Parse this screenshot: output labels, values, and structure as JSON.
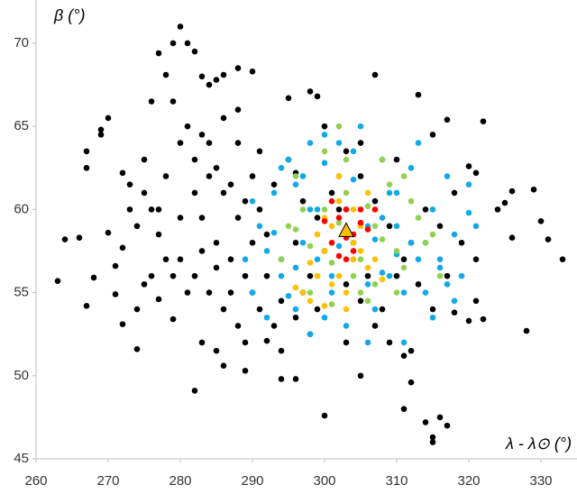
{
  "chart_data": {
    "type": "scatter",
    "ylabel": "β (°)",
    "xlabel": "λ - λ⊙ (°)",
    "xlim": [
      260,
      335
    ],
    "ylim": [
      45,
      72.6
    ],
    "xticks": [
      260,
      270,
      280,
      290,
      300,
      310,
      320,
      330
    ],
    "yticks": [
      45,
      50,
      55,
      60,
      65,
      70
    ],
    "grid": false,
    "series": [
      {
        "color": "#000000",
        "x": [
          263,
          264,
          266,
          267,
          267,
          267,
          269,
          270,
          269,
          271,
          272,
          274,
          272,
          273,
          275,
          276,
          277,
          278,
          279,
          280,
          281,
          282,
          283,
          284,
          285,
          286,
          288,
          290,
          295,
          296,
          298,
          299,
          307,
          313,
          315,
          317,
          322,
          320,
          321,
          325,
          326,
          329,
          330,
          331,
          333,
          328,
          326,
          324,
          322,
          320,
          321,
          318,
          317,
          315,
          314,
          316,
          315,
          312,
          311,
          311,
          312,
          305,
          303,
          300,
          294,
          294,
          296,
          292,
          289,
          286,
          285,
          282,
          283,
          279,
          277,
          275,
          271,
          268,
          277,
          280,
          282,
          284,
          286,
          288,
          290,
          292,
          294,
          296,
          298,
          290,
          288,
          286,
          284,
          282,
          280,
          278,
          276,
          274,
          272,
          270,
          283,
          285,
          287,
          289,
          291,
          293,
          295,
          297,
          299,
          301,
          303,
          305,
          307,
          309,
          311,
          313,
          315,
          317,
          319,
          321,
          308,
          306,
          304,
          302,
          300,
          298,
          296,
          294,
          292,
          290,
          288,
          286,
          284,
          282,
          280,
          278,
          276,
          274,
          288,
          291,
          300,
          305,
          310,
          318,
          316,
          314,
          312,
          310,
          309,
          307,
          305,
          303,
          299,
          297,
          293,
          291,
          289,
          287,
          285,
          283,
          281,
          279,
          277,
          275,
          273,
          279,
          281,
          283,
          285,
          287,
          289
        ],
        "y": [
          55.7,
          58.2,
          58.3,
          54.2,
          62.5,
          63.5,
          64.5,
          65.5,
          64.8,
          56.6,
          53.1,
          51.6,
          62.2,
          61.5,
          63,
          66.5,
          69.4,
          68.1,
          70,
          71,
          70,
          69.5,
          68,
          67.5,
          67.8,
          68.1,
          68.5,
          68.3,
          66.7,
          62.2,
          67.1,
          66.8,
          68.1,
          66.9,
          64.5,
          65.4,
          65.3,
          62.6,
          62.2,
          60.4,
          61.1,
          61.2,
          59.3,
          58.2,
          57,
          52.7,
          58.3,
          60,
          53.4,
          53.3,
          54.5,
          53.8,
          47,
          46.3,
          47.2,
          47.5,
          46,
          49.6,
          48,
          51.2,
          51.5,
          50,
          52,
          47.6,
          51.5,
          49.8,
          49.8,
          52.1,
          50.3,
          50.6,
          51.5,
          49.1,
          52,
          53.4,
          54.6,
          55.5,
          54.9,
          55.9,
          58.5,
          57,
          56,
          55,
          54,
          53,
          55,
          56,
          54.5,
          53.5,
          52.5,
          58,
          59.5,
          61,
          62,
          63,
          64,
          62,
          60,
          59,
          57.7,
          58.6,
          59.5,
          58,
          57,
          56,
          60,
          61.5,
          63,
          60.5,
          59.5,
          61,
          63.5,
          62,
          60.5,
          59,
          57,
          55.5,
          54,
          56,
          58,
          57,
          54,
          56,
          58,
          60,
          57.5,
          56,
          58,
          57,
          58.5,
          62,
          64,
          65.5,
          64,
          61,
          59.5,
          57,
          56,
          54,
          66,
          63.5,
          65,
          64,
          63,
          61,
          59,
          60,
          58,
          56,
          52,
          53,
          54.5,
          55.5,
          54,
          55,
          53,
          54,
          52,
          55,
          56.5,
          57.5,
          55,
          56,
          60,
          61,
          60,
          66.5,
          65,
          64.5,
          62.5,
          61.5,
          60.5
        ]
      },
      {
        "color": "#12a9e6",
        "x": [
          289,
          290,
          291,
          292,
          293,
          294,
          295,
          296,
          297,
          298,
          299,
          300,
          301,
          302,
          303,
          304,
          305,
          306,
          307,
          308,
          309,
          310,
          311,
          312,
          313,
          314,
          315,
          316,
          317,
          318,
          319,
          320,
          321,
          290,
          292,
          294,
          296,
          298,
          300,
          302,
          304,
          306,
          308,
          310,
          312,
          314,
          316,
          318,
          320,
          293,
          297,
          301,
          305,
          309,
          313,
          317,
          295,
          299,
          303,
          307,
          311,
          315,
          300,
          304,
          308,
          302,
          306,
          298,
          310,
          296
        ],
        "y": [
          57,
          55,
          59,
          53.5,
          61,
          56,
          63,
          54,
          58,
          52.5,
          60,
          64.5,
          55,
          62,
          53,
          57,
          65,
          59,
          54,
          63,
          56,
          61,
          52,
          58,
          64,
          55,
          60,
          57,
          62,
          58.5,
          56,
          61.5,
          59,
          60.5,
          57.5,
          62.5,
          56.5,
          64,
          53.5,
          57.8,
          61.8,
          55.5,
          59.5,
          57.3,
          62.5,
          58,
          56.5,
          54.5,
          59.8,
          58.6,
          62,
          56,
          59,
          61,
          57,
          55.5,
          54.8,
          57,
          60,
          58.2,
          55,
          53.5,
          62.8,
          63.5,
          56.2,
          64,
          52,
          60,
          59,
          61.5
        ]
      },
      {
        "color": "#92d050",
        "x": [
          294,
          296,
          298,
          300,
          302,
          304,
          306,
          308,
          310,
          312,
          314,
          316,
          295,
          299,
          303,
          307,
          311,
          315,
          297,
          301,
          305,
          309,
          313,
          300,
          304,
          308,
          302,
          306,
          310,
          298,
          303,
          307,
          311,
          296,
          305,
          301
        ],
        "y": [
          57,
          62,
          55,
          60,
          65,
          58,
          54.5,
          63,
          57.5,
          60.5,
          58,
          56,
          59,
          56,
          61,
          55.5,
          62,
          58.5,
          60,
          54.3,
          57,
          61.5,
          59.5,
          63.5,
          56,
          58.2,
          59.2,
          60.2,
          55,
          57.8,
          63,
          59,
          56.5,
          58.8,
          55,
          56.8
        ]
      },
      {
        "color": "#ffc000",
        "x": [
          297,
          298,
          299,
          300,
          301,
          302,
          303,
          304,
          305,
          306,
          307,
          308,
          298,
          300,
          302,
          304,
          306,
          296,
          301,
          303,
          305,
          299,
          307,
          302,
          304,
          300
        ],
        "y": [
          55,
          54.5,
          56,
          57.5,
          55.5,
          60.5,
          54,
          57,
          59,
          56.5,
          60,
          55.8,
          56.8,
          54.2,
          56,
          58,
          61,
          55.3,
          59,
          55,
          57.5,
          58.5,
          57,
          62,
          60,
          59.5
        ]
      },
      {
        "color": "#ff0000",
        "x": [
          300,
          301,
          302,
          303,
          304,
          305,
          302,
          303,
          304,
          306,
          301,
          305,
          303,
          307
        ],
        "y": [
          59.3,
          58,
          59.5,
          57,
          58.5,
          60,
          57.2,
          60,
          57.5,
          58.8,
          60.5,
          59.2,
          58.3,
          60
        ]
      },
      {
        "color": "#ffc000",
        "marker": "triangle",
        "x": [
          303
        ],
        "y": [
          58.7
        ]
      }
    ]
  }
}
